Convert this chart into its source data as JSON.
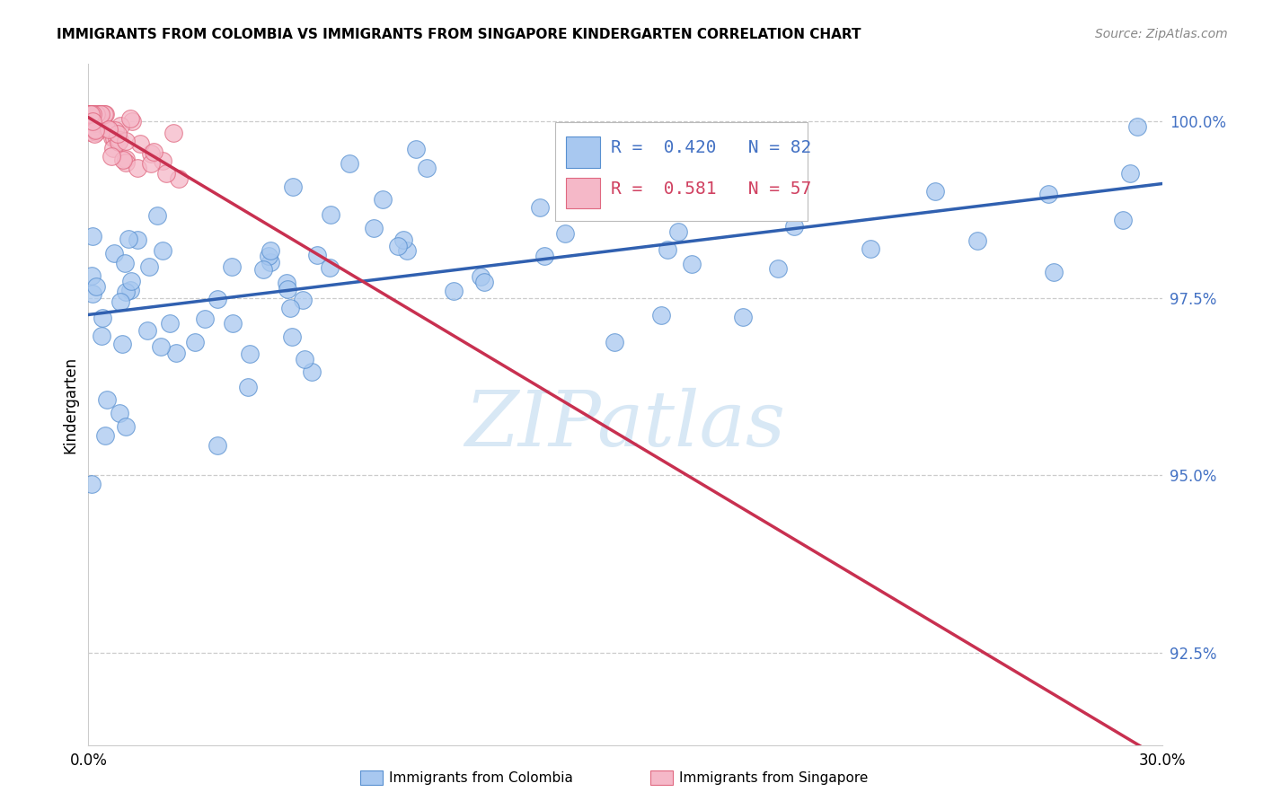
{
  "title": "IMMIGRANTS FROM COLOMBIA VS IMMIGRANTS FROM SINGAPORE KINDERGARTEN CORRELATION CHART",
  "source": "Source: ZipAtlas.com",
  "ylabel": "Kindergarten",
  "ytick_labels": [
    "92.5%",
    "95.0%",
    "97.5%",
    "100.0%"
  ],
  "ytick_values": [
    0.925,
    0.95,
    0.975,
    1.0
  ],
  "xmin": 0.0,
  "xmax": 0.3,
  "ymin": 0.912,
  "ymax": 1.008,
  "colombia_R": 0.42,
  "colombia_N": 82,
  "singapore_R": 0.581,
  "singapore_N": 57,
  "colombia_color": "#A8C8F0",
  "singapore_color": "#F5B8C8",
  "colombia_edge_color": "#5890D0",
  "singapore_edge_color": "#E06880",
  "colombia_line_color": "#3060B0",
  "singapore_line_color": "#C83050",
  "watermark_color": "#D8E8F5",
  "title_fontsize": 11,
  "source_fontsize": 10,
  "tick_fontsize": 12,
  "legend_fontsize": 14,
  "ylabel_fontsize": 12,
  "grid_color": "#CCCCCC",
  "spine_color": "#CCCCCC"
}
